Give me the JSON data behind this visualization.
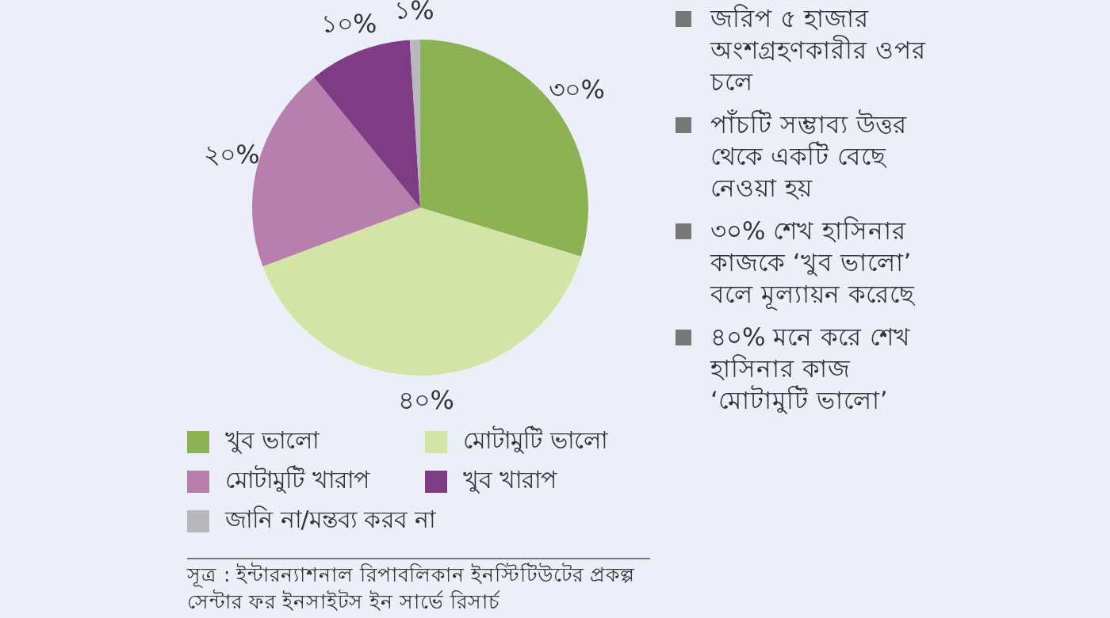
{
  "chart_data": {
    "type": "pie",
    "categories": [
      "খুব ভালো",
      "মোটামুটি ভালো",
      "মোটামুটি খারাপ",
      "খুব খারাপ",
      "জানি না/মন্তব্য করব না"
    ],
    "values": [
      30,
      40,
      20,
      10,
      1
    ],
    "value_labels": [
      "৩০%",
      "৪০%",
      "২০%",
      "১০%",
      "১%"
    ],
    "colors": [
      "#8db254",
      "#d3e4a6",
      "#b77fae",
      "#7d3c84",
      "#b9b9bd"
    ],
    "legend": "bottom",
    "annotations": [
      "জরিপ ৫ হাজার অংশগ্রহণকারীর ওপর চলে",
      "পাঁচটি সম্ভাব্য উত্তর থেকে একটি বেছে নেওয়া হয়",
      "৩০% শেখ হাসিনার কাজকে ‘খুব ভালো’ বলে মূল্যায়ন করেছে",
      "৪০% মনে করে শেখ হাসিনার কাজ ‘মোটামুটি ভালো’",
      "সূত্র : ইন্টারন্যাশনাল রিপাবলিকান ইনস্টিটিউটের প্রকল্প সেন্টার ফর ইনসাইটস ইন সার্ভে রিসার্চ"
    ]
  }
}
